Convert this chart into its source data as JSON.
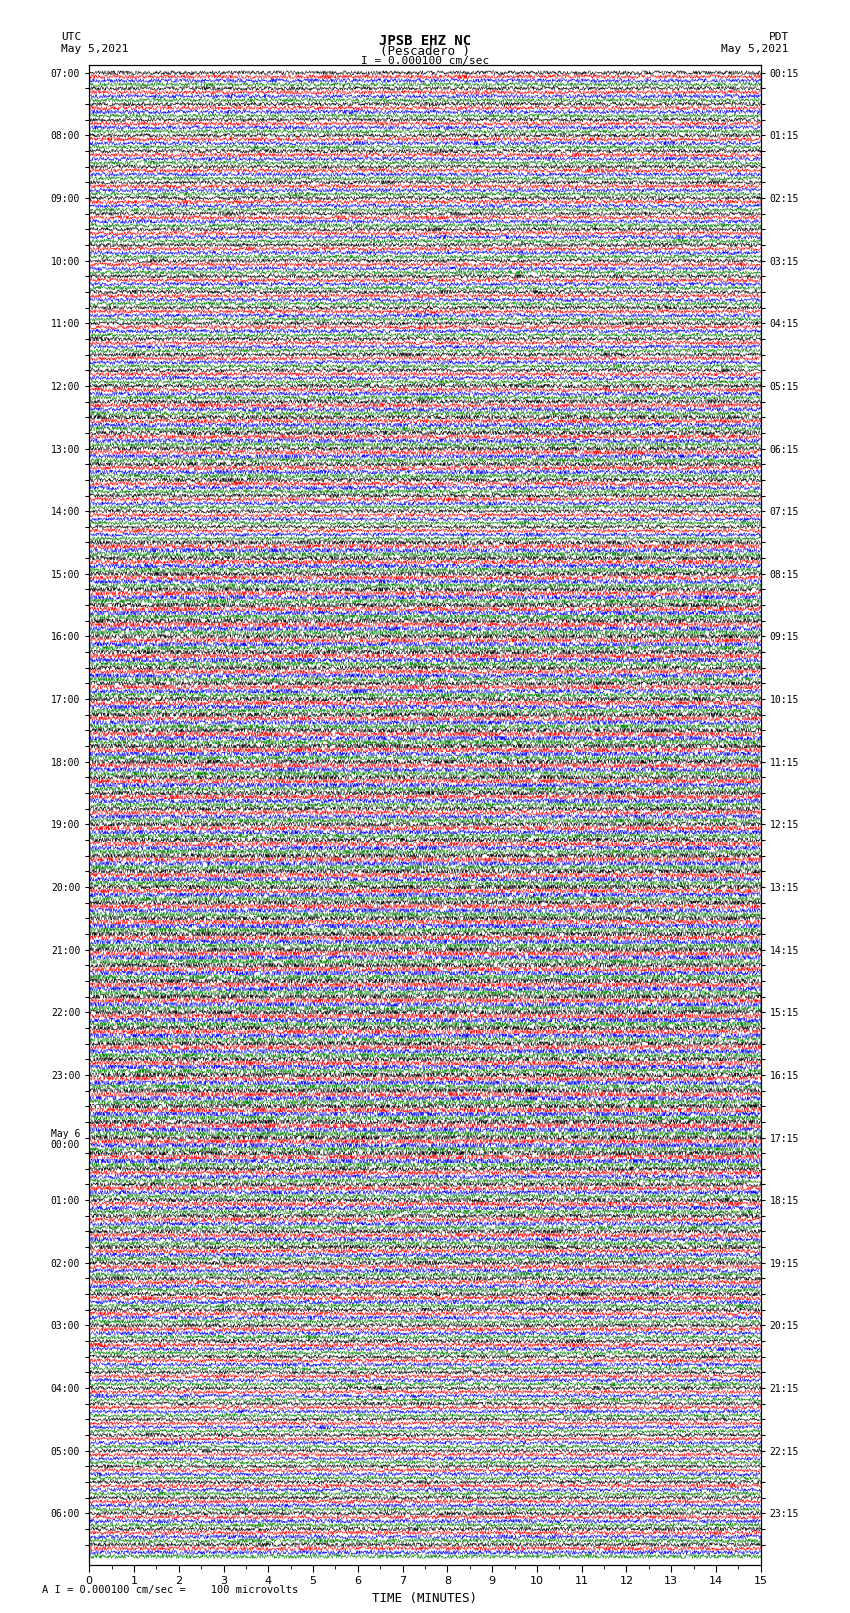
{
  "title_line1": "JPSB EHZ NC",
  "title_line2": "(Pescadero )",
  "scale_label": "I = 0.000100 cm/sec",
  "utc_label_1": "UTC",
  "utc_label_2": "May 5,2021",
  "pdt_label_1": "PDT",
  "pdt_label_2": "May 5,2021",
  "bottom_label": "A I = 0.000100 cm/sec =    100 microvolts",
  "xlabel": "TIME (MINUTES)",
  "left_times": [
    "07:00",
    "",
    "",
    "",
    "08:00",
    "",
    "",
    "",
    "09:00",
    "",
    "",
    "",
    "10:00",
    "",
    "",
    "",
    "11:00",
    "",
    "",
    "",
    "12:00",
    "",
    "",
    "",
    "13:00",
    "",
    "",
    "",
    "14:00",
    "",
    "",
    "",
    "15:00",
    "",
    "",
    "",
    "16:00",
    "",
    "",
    "",
    "17:00",
    "",
    "",
    "",
    "18:00",
    "",
    "",
    "",
    "19:00",
    "",
    "",
    "",
    "20:00",
    "",
    "",
    "",
    "21:00",
    "",
    "",
    "",
    "22:00",
    "",
    "",
    "",
    "23:00",
    "",
    "",
    "",
    "May 6\n00:00",
    "",
    "",
    "",
    "01:00",
    "",
    "",
    "",
    "02:00",
    "",
    "",
    "",
    "03:00",
    "",
    "",
    "",
    "04:00",
    "",
    "",
    "",
    "05:00",
    "",
    "",
    "",
    "06:00",
    "",
    ""
  ],
  "right_times": [
    "00:15",
    "",
    "",
    "",
    "01:15",
    "",
    "",
    "",
    "02:15",
    "",
    "",
    "",
    "03:15",
    "",
    "",
    "",
    "04:15",
    "",
    "",
    "",
    "05:15",
    "",
    "",
    "",
    "06:15",
    "",
    "",
    "",
    "07:15",
    "",
    "",
    "",
    "08:15",
    "",
    "",
    "",
    "09:15",
    "",
    "",
    "",
    "10:15",
    "",
    "",
    "",
    "11:15",
    "",
    "",
    "",
    "12:15",
    "",
    "",
    "",
    "13:15",
    "",
    "",
    "",
    "14:15",
    "",
    "",
    "",
    "15:15",
    "",
    "",
    "",
    "16:15",
    "",
    "",
    "",
    "17:15",
    "",
    "",
    "",
    "18:15",
    "",
    "",
    "",
    "19:15",
    "",
    "",
    "",
    "20:15",
    "",
    "",
    "",
    "21:15",
    "",
    "",
    "",
    "22:15",
    "",
    "",
    "",
    "23:15",
    "",
    ""
  ],
  "num_rows": 95,
  "traces_per_row": 4,
  "colors": [
    "black",
    "red",
    "blue",
    "green"
  ],
  "bg_color": "white",
  "xlim": [
    0,
    15
  ],
  "xticks": [
    0,
    1,
    2,
    3,
    4,
    5,
    6,
    7,
    8,
    9,
    10,
    11,
    12,
    13,
    14,
    15
  ]
}
